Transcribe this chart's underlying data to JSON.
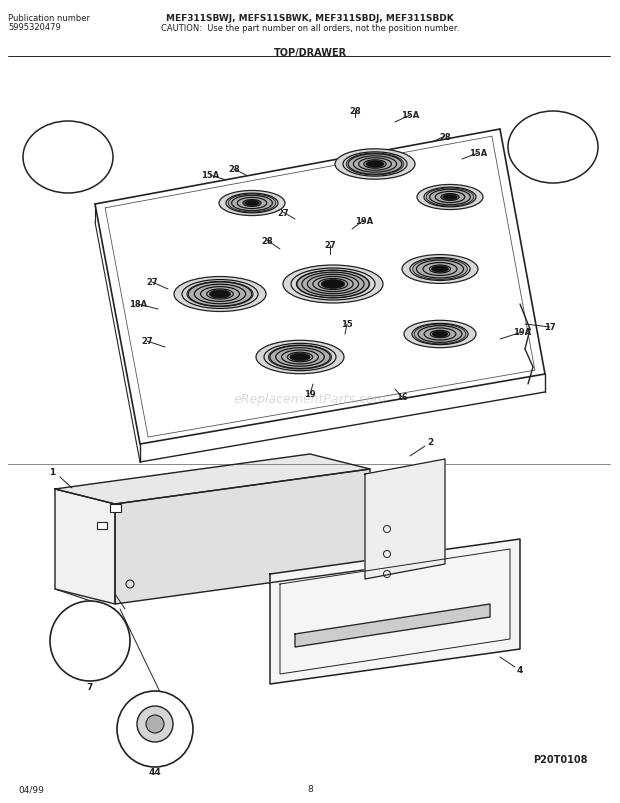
{
  "title_line1": "MEF311SBWJ, MEFS11SBWK, MEF311SBDJ, MEF311SBDK",
  "title_line2": "CAUTION:  Use the part number on all orders, not the position number.",
  "section_title": "TOP/DRAWER",
  "pub_label": "Publication number",
  "pub_number": "5995320479",
  "page_code": "P20T0108",
  "date_code": "04/99",
  "page_number": "8",
  "bg_color": "#ffffff",
  "text_color": "#000000",
  "diagram_color": "#222222",
  "watermark_text": "eReplacementParts.com",
  "watermark_color": "#bbbbbb",
  "fig_width": 6.2,
  "fig_height": 8.04,
  "dpi": 100
}
